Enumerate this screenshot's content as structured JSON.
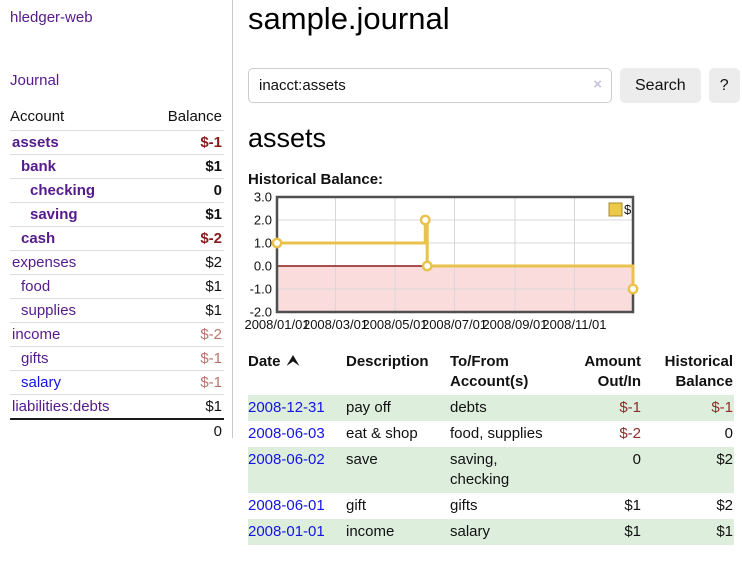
{
  "app": {
    "brand": "hledger-web",
    "nav_journal": "Journal"
  },
  "sidebar": {
    "header": {
      "account": "Account",
      "balance": "Balance"
    },
    "accounts": [
      {
        "name": "assets",
        "level": 0,
        "balance": "$-1",
        "bold": true,
        "neg": "strong"
      },
      {
        "name": "bank",
        "level": 1,
        "balance": "$1",
        "bold": true
      },
      {
        "name": "checking",
        "level": 2,
        "balance": "0",
        "bold": true
      },
      {
        "name": "saving",
        "level": 2,
        "balance": "$1",
        "bold": true
      },
      {
        "name": "cash",
        "level": 1,
        "balance": "$-2",
        "bold": true,
        "neg": "strong"
      },
      {
        "name": "expenses",
        "level": 0,
        "balance": "$2"
      },
      {
        "name": "food",
        "level": 1,
        "balance": "$1"
      },
      {
        "name": "supplies",
        "level": 1,
        "balance": "$1"
      },
      {
        "name": "income",
        "level": 0,
        "balance": "$-2",
        "neg": "soft"
      },
      {
        "name": "gifts",
        "level": 1,
        "balance": "$-1",
        "neg": "soft"
      },
      {
        "name": "salary",
        "level": 1,
        "balance": "$-1",
        "neg": "soft",
        "blue": true
      },
      {
        "name": "liabilities:debts",
        "level": 0,
        "balance": "$1"
      }
    ],
    "total": "0"
  },
  "header": {
    "title": "sample.journal"
  },
  "search": {
    "value": "inacct:assets",
    "clear": "×",
    "button": "Search",
    "help": "?"
  },
  "account_page": {
    "title": "assets",
    "chart_label": "Historical Balance:"
  },
  "chart_data": {
    "type": "line",
    "style": "step",
    "title": "Historical Balance",
    "series": [
      {
        "name": "$",
        "color": "#e9c24b",
        "points": [
          [
            "2008-01-01",
            1
          ],
          [
            "2008-06-01",
            2
          ],
          [
            "2008-06-03",
            0
          ],
          [
            "2008-12-31",
            -1
          ]
        ]
      }
    ],
    "x_range": [
      "2008-01-01",
      "2008-12-31"
    ],
    "x_ticks": [
      "2008/01/01",
      "2008/03/01",
      "2008/05/01",
      "2008/07/01",
      "2008/09/01",
      "2008/11/01"
    ],
    "y_ticks": [
      "3.0",
      "2.0",
      "1.0",
      "0.0",
      "-1.0",
      "-2.0"
    ],
    "ylim": [
      -2,
      3
    ],
    "grid": true,
    "legend": {
      "label": "$",
      "position": "top-right"
    },
    "negative_region_color": "#fbdcdc",
    "zero_line_color": "#8b1a1a",
    "grid_color": "#d8d8d8",
    "border_color": "#4f4f4f"
  },
  "register": {
    "headers": [
      {
        "line1": "Date",
        "sort": "asc"
      },
      {
        "line1": "Description"
      },
      {
        "line1": "To/From",
        "line2": "Account(s)"
      },
      {
        "line1": "Amount",
        "line2": "Out/In",
        "align": "right"
      },
      {
        "line1": "Historical",
        "line2": "Balance",
        "align": "right"
      }
    ],
    "rows": [
      {
        "date": "2008-12-31",
        "description": "pay off",
        "accounts": "debts",
        "amount": "$-1",
        "amount_neg": true,
        "balance": "$-1",
        "balance_neg": true
      },
      {
        "date": "2008-06-03",
        "description": "eat & shop",
        "accounts": "food, supplies",
        "amount": "$-2",
        "amount_neg": true,
        "balance": "0",
        "balance_neg": false
      },
      {
        "date": "2008-06-02",
        "description": "save",
        "accounts": "saving, checking",
        "amount": "0",
        "amount_neg": false,
        "balance": "$2",
        "balance_neg": false
      },
      {
        "date": "2008-06-01",
        "description": "gift",
        "accounts": "gifts",
        "amount": "$1",
        "amount_neg": false,
        "balance": "$2",
        "balance_neg": false
      },
      {
        "date": "2008-01-01",
        "description": "income",
        "accounts": "salary",
        "amount": "$1",
        "amount_neg": false,
        "balance": "$1",
        "balance_neg": false
      }
    ]
  },
  "colors": {
    "link_purple": "#551a8b",
    "link_blue": "#1414e0",
    "negative_strong": "#8b1a1a",
    "negative_soft": "#b9736d",
    "row_green": "#ddeedd",
    "chart_gold": "#e9c24b",
    "chart_pink": "#fbdcdc"
  }
}
